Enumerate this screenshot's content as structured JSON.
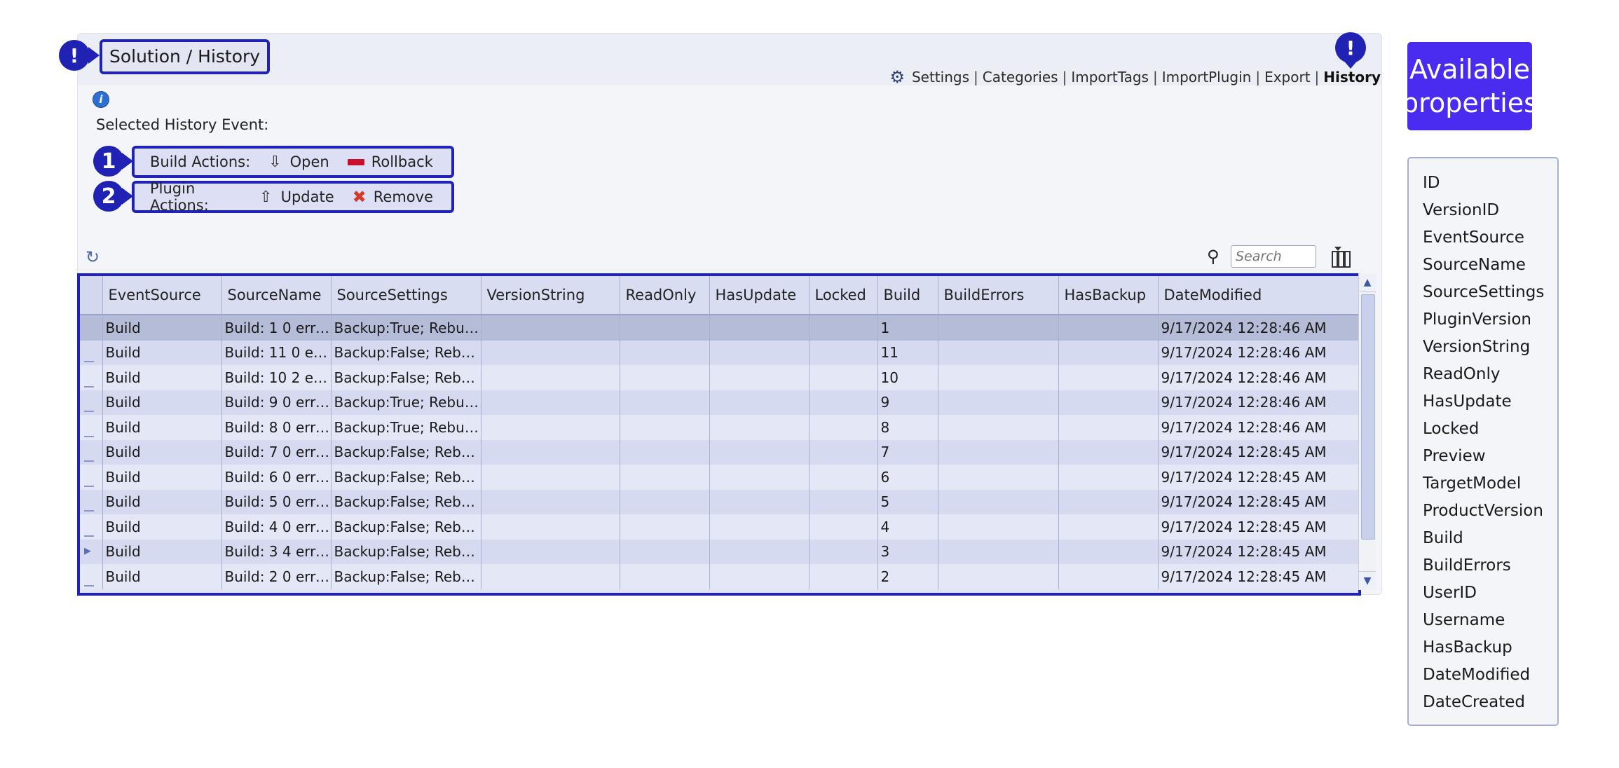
{
  "header": {
    "title": "Solution / History",
    "nav": [
      {
        "label": "Settings",
        "active": false
      },
      {
        "label": "Categories",
        "active": false
      },
      {
        "label": "ImportTags",
        "active": false
      },
      {
        "label": "ImportPlugin",
        "active": false
      },
      {
        "label": "Export",
        "active": false
      },
      {
        "label": "History",
        "active": true
      }
    ],
    "separator": "|"
  },
  "callouts": {
    "bang": "!",
    "one": "1",
    "two": "2"
  },
  "selected_label": "Selected History Event:",
  "build_actions": {
    "label": "Build Actions:",
    "open": "Open",
    "rollback": "Rollback"
  },
  "plugin_actions": {
    "label": "Plugin Actions:",
    "update": "Update",
    "remove": "Remove"
  },
  "search": {
    "placeholder": "Search",
    "value": ""
  },
  "grid": {
    "columns": [
      "EventSource",
      "SourceName",
      "SourceSettings",
      "VersionString",
      "ReadOnly",
      "HasUpdate",
      "Locked",
      "Build",
      "BuildErrors",
      "HasBackup",
      "DateModified"
    ],
    "rows": [
      [
        "Build",
        "Build: 1 0 erro...",
        "Backup:True; Rebuil...",
        "",
        "",
        "",
        "",
        "1",
        "",
        "",
        "9/17/2024 12:28:46 AM"
      ],
      [
        "Build",
        "Build: 11 0 err...",
        "Backup:False; Rebuil...",
        "",
        "",
        "",
        "",
        "11",
        "",
        "",
        "9/17/2024 12:28:46 AM"
      ],
      [
        "Build",
        "Build: 10 2 err...",
        "Backup:False; Rebuil...",
        "",
        "",
        "",
        "",
        "10",
        "",
        "",
        "9/17/2024 12:28:46 AM"
      ],
      [
        "Build",
        "Build: 9 0 erro...",
        "Backup:True; Rebuil...",
        "",
        "",
        "",
        "",
        "9",
        "",
        "",
        "9/17/2024 12:28:46 AM"
      ],
      [
        "Build",
        "Build: 8 0 erro...",
        "Backup:True; Rebuil...",
        "",
        "",
        "",
        "",
        "8",
        "",
        "",
        "9/17/2024 12:28:46 AM"
      ],
      [
        "Build",
        "Build: 7 0 erro...",
        "Backup:False; Rebuil...",
        "",
        "",
        "",
        "",
        "7",
        "",
        "",
        "9/17/2024 12:28:45 AM"
      ],
      [
        "Build",
        "Build: 6 0 erro...",
        "Backup:False; Rebuil...",
        "",
        "",
        "",
        "",
        "6",
        "",
        "",
        "9/17/2024 12:28:45 AM"
      ],
      [
        "Build",
        "Build: 5 0 erro...",
        "Backup:False; Rebuil...",
        "",
        "",
        "",
        "",
        "5",
        "",
        "",
        "9/17/2024 12:28:45 AM"
      ],
      [
        "Build",
        "Build: 4 0 erro...",
        "Backup:False; Rebuil...",
        "",
        "",
        "",
        "",
        "4",
        "",
        "",
        "9/17/2024 12:28:45 AM"
      ],
      [
        "Build",
        "Build: 3 4 erro...",
        "Backup:False; Rebuil...",
        "",
        "",
        "",
        "",
        "3",
        "",
        "",
        "9/17/2024 12:28:45 AM"
      ],
      [
        "Build",
        "Build: 2 0 erro...",
        "Backup:False; Rebuil...",
        "",
        "",
        "",
        "",
        "2",
        "",
        "",
        "9/17/2024 12:28:45 AM"
      ]
    ],
    "selected_row": 0,
    "current_row": 9
  },
  "properties": {
    "heading": "Available properties",
    "items": [
      "ID",
      "VersionID",
      "EventSource",
      "SourceName",
      "SourceSettings",
      "PluginVersion",
      "VersionString",
      "ReadOnly",
      "HasUpdate",
      "Locked",
      "Preview",
      "TargetModel",
      "ProductVersion",
      "Build",
      "BuildErrors",
      "UserID",
      "Username",
      "HasBackup",
      "DateModified",
      "DateCreated"
    ]
  },
  "icons": {
    "settings": "gear-icon",
    "info": "info-icon",
    "open": "arrow-down-outline-icon",
    "rollback": "red-bar-icon",
    "update": "arrow-up-outline-icon",
    "remove": "red-x-icon",
    "refresh": "refresh-icon",
    "search": "magnifier-icon",
    "column_chooser": "column-chooser-icon"
  },
  "colors": {
    "callout": "#1f22b3",
    "props_heading": "#4a2cf0",
    "rollback": "#c8102e",
    "remove": "#d23a2a"
  }
}
